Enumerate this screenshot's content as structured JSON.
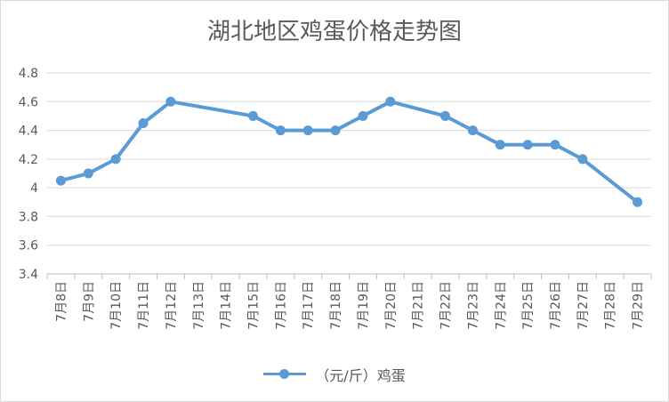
{
  "chart_data": {
    "type": "line",
    "title": "湖北地区鸡蛋价格走势图",
    "categories": [
      "7月8日",
      "7月9日",
      "7月10日",
      "7月11日",
      "7月12日",
      "7月13日",
      "7月14日",
      "7月15日",
      "7月16日",
      "7月17日",
      "7月18日",
      "7月19日",
      "7月20日",
      "7月21日",
      "7月22日",
      "7月23日",
      "7月24日",
      "7月25日",
      "7月26日",
      "7月27日",
      "7月28日",
      "7月29日"
    ],
    "series": [
      {
        "name": "（元/斤）鸡蛋",
        "color": "#5b9bd5",
        "values": [
          4.05,
          4.1,
          4.2,
          4.45,
          4.6,
          null,
          null,
          4.5,
          4.4,
          4.4,
          4.4,
          4.5,
          4.6,
          null,
          4.5,
          4.4,
          4.3,
          4.3,
          4.3,
          4.2,
          null,
          3.9
        ]
      }
    ],
    "yticks": [
      "3.4",
      "3.6",
      "3.8",
      "4",
      "4.2",
      "4.4",
      "4.6",
      "4.8"
    ],
    "ylim": [
      3.4,
      4.8
    ],
    "grid": true,
    "legend_position": "bottom"
  }
}
